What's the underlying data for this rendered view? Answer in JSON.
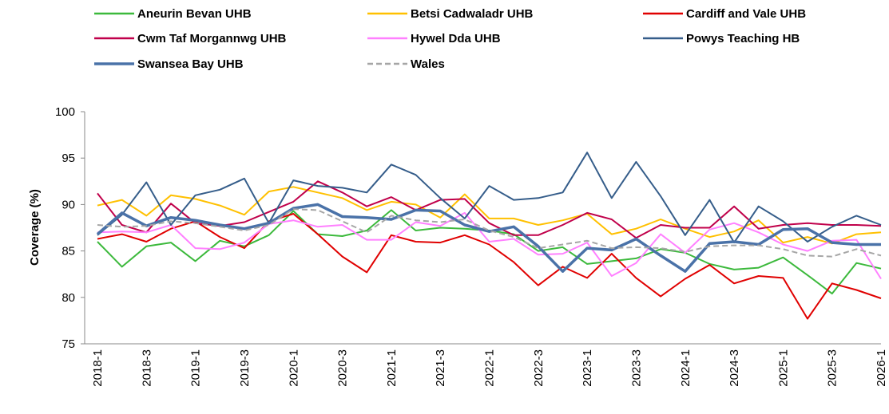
{
  "chart_data": {
    "type": "line",
    "y_label": "Coverage (%)",
    "categories": [
      "2018-1",
      null,
      "2018-3",
      null,
      "2019-1",
      null,
      "2019-3",
      null,
      "2020-1",
      null,
      "2020-3",
      null,
      "2021-1",
      null,
      "2021-3",
      null,
      "2022-1",
      null,
      "2022-3",
      null,
      "2023-1",
      null,
      "2023-3",
      null,
      "2024-1",
      null,
      "2024-3",
      null,
      "2025-1",
      null,
      "2025-3",
      null,
      "2026-1"
    ],
    "ylim": [
      75,
      100
    ],
    "yticks": [
      75,
      80,
      85,
      90,
      95,
      100
    ],
    "grid": false,
    "legend": "top",
    "series": [
      {
        "name": "Aneurin Bevan UHB",
        "color": "#3cb93c",
        "values": [
          86,
          83.3,
          85.5,
          85.9,
          83.9,
          86.1,
          85.5,
          86.7,
          89.3,
          86.8,
          86.6,
          87.2,
          89.4,
          87.2,
          87.5,
          87.4,
          87.2,
          86.8,
          85.0,
          85.4,
          83.6,
          83.9,
          84.2,
          85.2,
          84.8,
          83.6,
          83.0,
          83.2,
          84.3,
          82.4,
          80.4,
          83.7,
          83.1
        ]
      },
      {
        "name": "Betsi Cadwaladr UHB",
        "color": "#ffc000",
        "values": [
          89.9,
          90.5,
          88.8,
          91.0,
          90.6,
          89.9,
          88.9,
          91.4,
          91.9,
          91.3,
          90.7,
          89.4,
          90.3,
          90.0,
          88.6,
          91.1,
          88.5,
          88.5,
          87.8,
          88.3,
          89.0,
          86.8,
          87.4,
          88.4,
          87.4,
          86.5,
          87.1,
          88.3,
          85.9,
          86.5,
          85.8,
          86.8,
          87.0
        ]
      },
      {
        "name": "Cardiff and Vale UHB",
        "color": "#e00000",
        "values": [
          86.3,
          86.8,
          86.0,
          87.4,
          88.2,
          86.5,
          85.3,
          88.2,
          89.0,
          86.8,
          84.4,
          82.7,
          86.7,
          86.0,
          85.9,
          86.7,
          85.7,
          83.8,
          81.3,
          83.3,
          82.1,
          84.7,
          82.1,
          80.1,
          82.0,
          83.5,
          81.5,
          82.3,
          82.1,
          77.7,
          81.5,
          80.8,
          79.9
        ]
      },
      {
        "name": "Cwm Taf Morgannwg UHB",
        "color": "#c0004a",
        "values": [
          91.2,
          87.8,
          87.0,
          90.1,
          88.0,
          87.7,
          88.1,
          89.2,
          90.3,
          92.5,
          91.3,
          89.8,
          90.8,
          89.4,
          90.5,
          90.6,
          88.0,
          86.7,
          86.7,
          87.8,
          89.1,
          88.4,
          86.4,
          87.8,
          87.5,
          87.5,
          89.8,
          87.4,
          87.8,
          88.0,
          87.8,
          87.8,
          87.7
        ]
      },
      {
        "name": "Hywel Dda UHB",
        "color": "#ff80ff",
        "values": [
          87.0,
          87.1,
          87.0,
          87.8,
          85.3,
          85.2,
          85.9,
          87.9,
          88.3,
          87.6,
          87.8,
          86.2,
          86.2,
          88.1,
          87.7,
          89.1,
          86.0,
          86.3,
          84.6,
          84.7,
          85.9,
          82.3,
          83.7,
          86.8,
          84.8,
          87.3,
          88.0,
          87.0,
          85.7,
          85.0,
          86.1,
          86.2,
          82.0
        ]
      },
      {
        "name": "Powys Teaching HB",
        "color": "#355d8a",
        "values": [
          86.7,
          88.9,
          92.4,
          87.8,
          91.0,
          91.6,
          92.8,
          88.0,
          92.6,
          92.0,
          91.8,
          91.3,
          94.3,
          93.2,
          90.7,
          88.5,
          92.0,
          90.5,
          90.7,
          91.3,
          95.6,
          90.7,
          94.6,
          90.9,
          86.7,
          90.5,
          85.9,
          89.8,
          88.2,
          86.0,
          87.6,
          88.8,
          87.8
        ]
      },
      {
        "name": "Swansea Bay UHB",
        "color": "#4a72a8",
        "width": 3.5,
        "values": [
          86.8,
          89.1,
          87.7,
          88.6,
          88.3,
          87.8,
          87.4,
          88.0,
          89.6,
          90.0,
          88.7,
          88.6,
          88.4,
          89.4,
          89.3,
          87.8,
          87.1,
          87.6,
          85.5,
          82.8,
          85.3,
          85.1,
          86.3,
          84.5,
          82.8,
          85.8,
          86.0,
          85.7,
          87.3,
          87.4,
          85.9,
          85.7,
          85.7
        ]
      },
      {
        "name": "Wales",
        "color": "#a6a6a6",
        "dashed": true,
        "values": [
          87.8,
          87.6,
          87.7,
          88.2,
          88.0,
          87.6,
          87.2,
          87.8,
          89.5,
          89.4,
          88.2,
          87.0,
          88.8,
          88.3,
          88.1,
          88.4,
          87.2,
          86.5,
          85.3,
          85.7,
          86.1,
          85.3,
          85.4,
          85.3,
          84.9,
          85.5,
          85.6,
          85.6,
          85.2,
          84.5,
          84.4,
          85.2,
          84.5
        ]
      }
    ]
  }
}
